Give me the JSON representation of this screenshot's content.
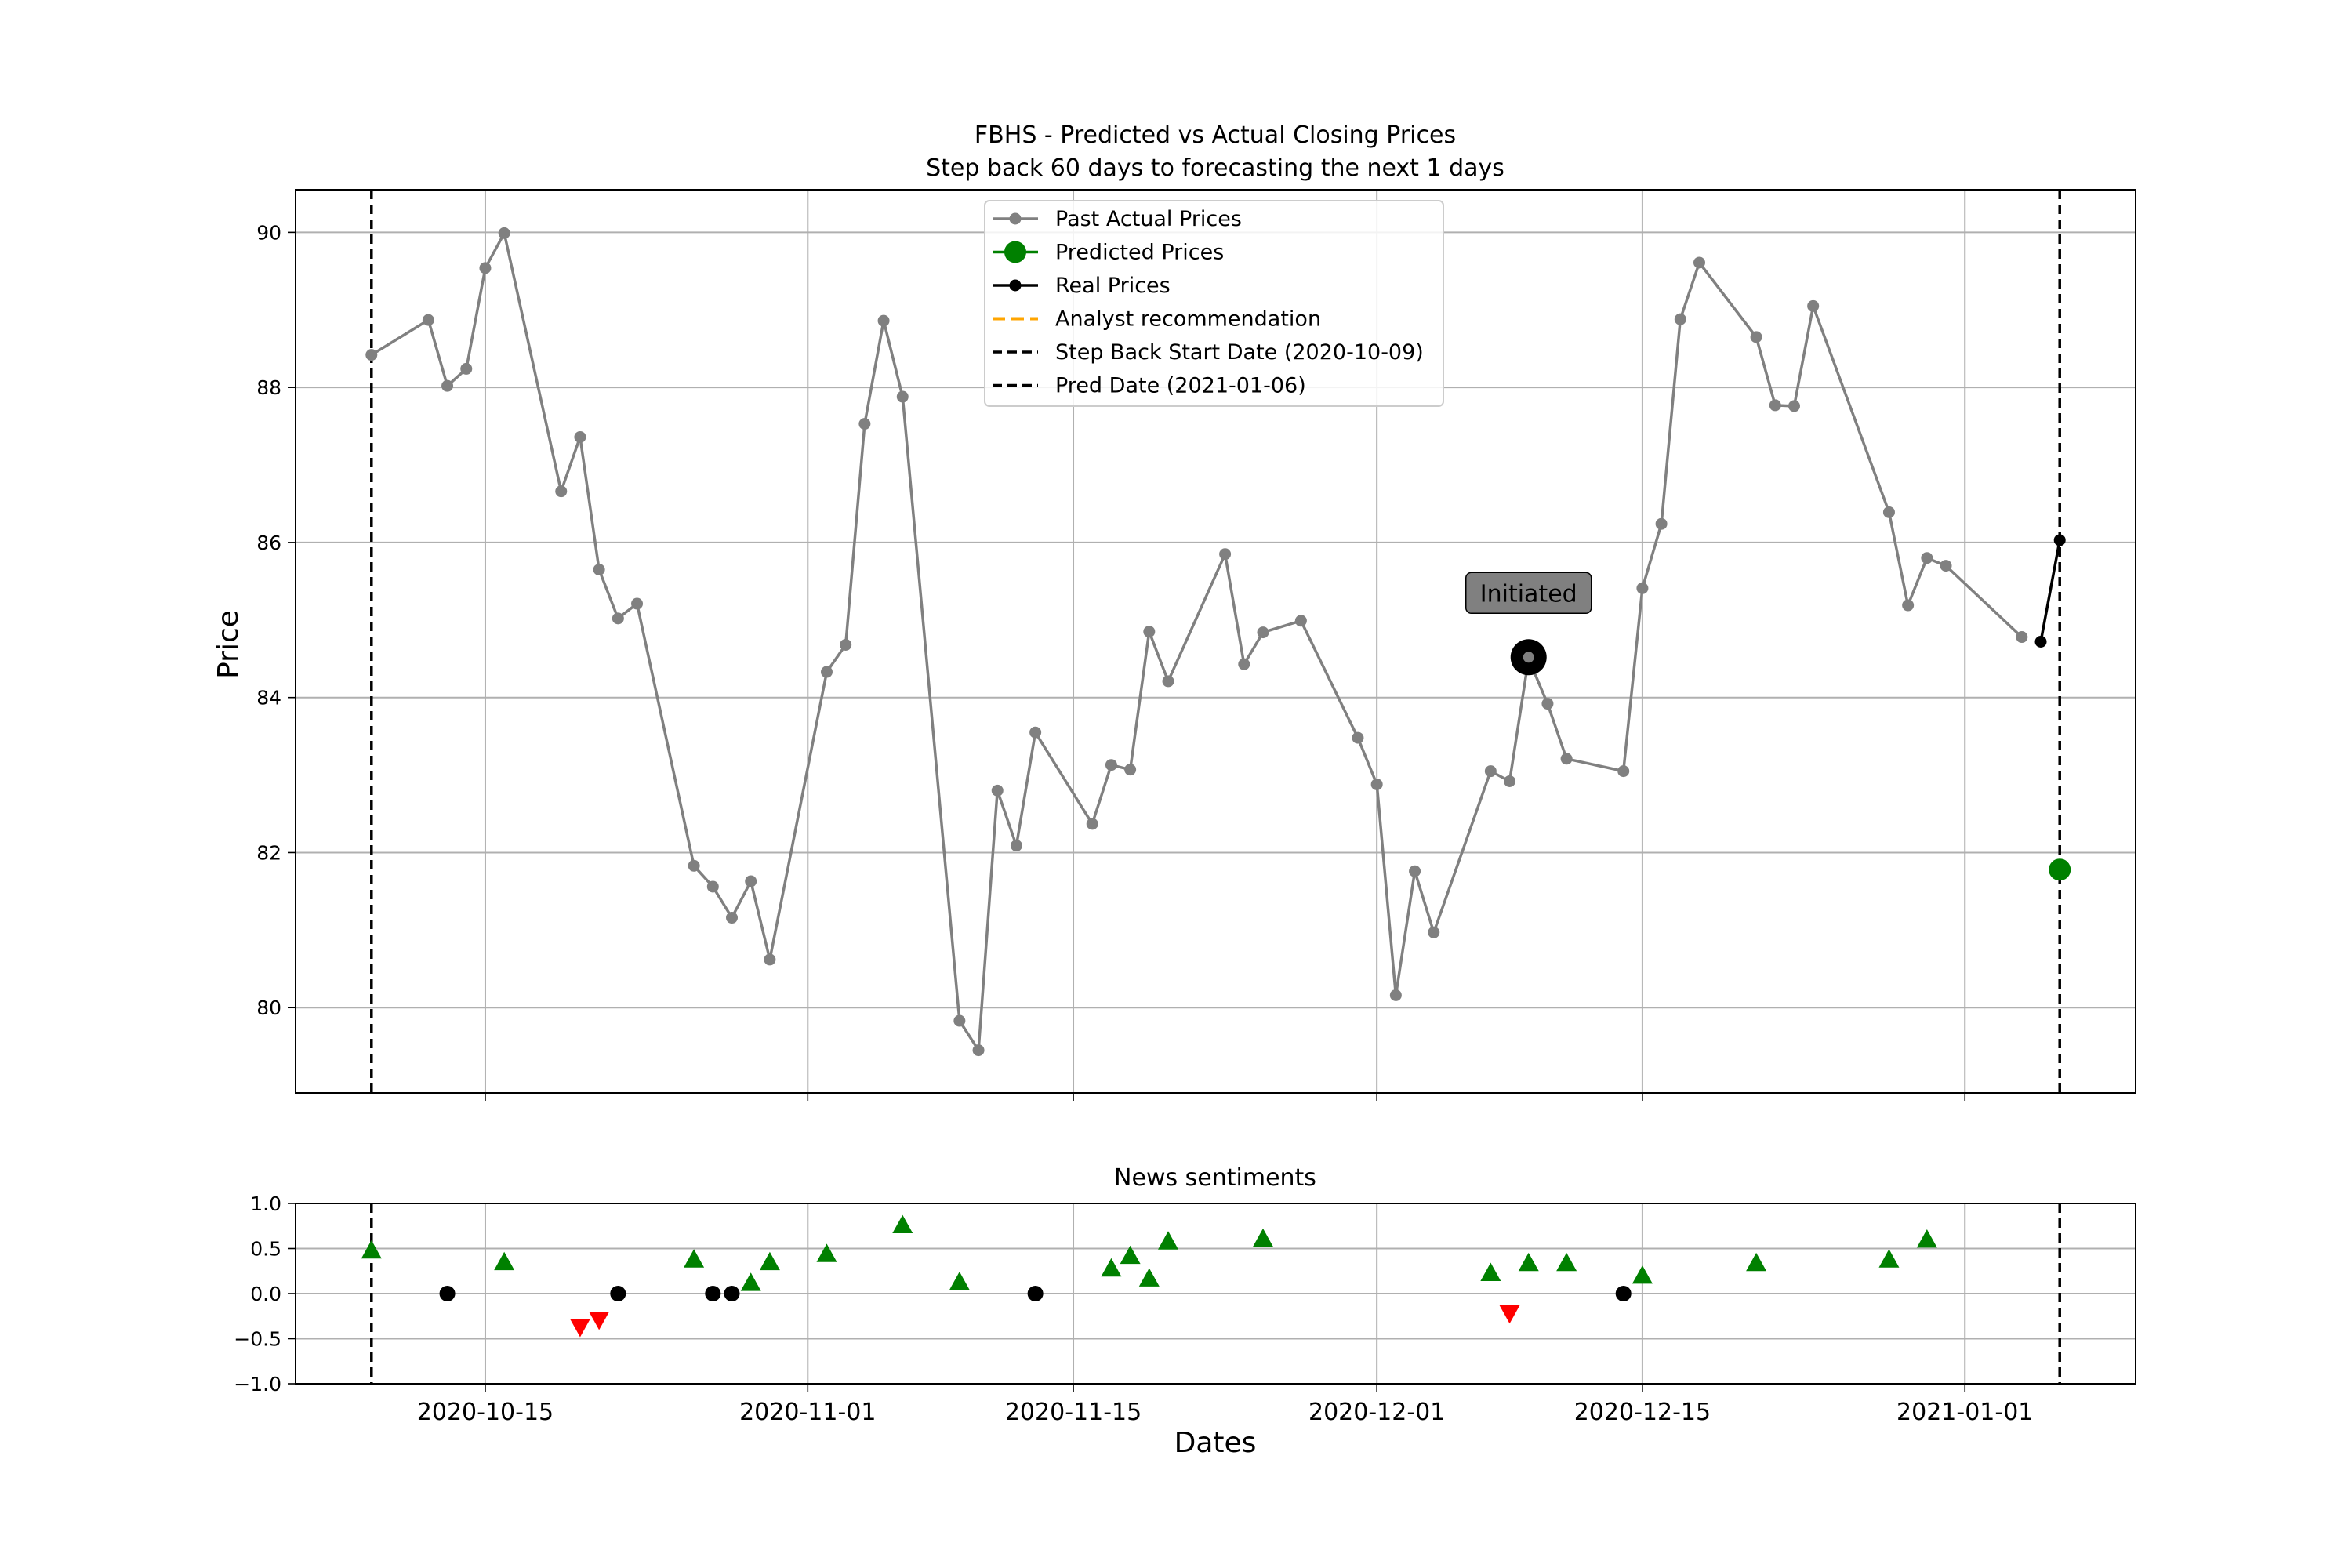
{
  "chart_data": [
    {
      "type": "line",
      "title": "FBHS - Predicted vs Actual Closing Prices",
      "subtitle": "Step back 60 days to forecasting the next 1 days",
      "xlabel": "",
      "ylabel": "Price",
      "xlim": [
        "2020-10-05",
        "2021-01-10"
      ],
      "ylim": [
        78.9,
        90.55
      ],
      "yticks": [
        80,
        82,
        84,
        86,
        88,
        90
      ],
      "grid": true,
      "legend_position": "top-center",
      "legend": [
        {
          "label": "Past Actual Prices",
          "style": "gray-line-dot"
        },
        {
          "label": "Predicted Prices",
          "style": "green-big-dot"
        },
        {
          "label": "Real Prices",
          "style": "black-line-dot"
        },
        {
          "label": "Analyst recommendation",
          "style": "orange-dash"
        },
        {
          "label": "Step Back Start Date (2020-10-09)",
          "style": "black-dash"
        },
        {
          "label": "Pred Date (2021-01-06)",
          "style": "black-dash"
        }
      ],
      "series": [
        {
          "name": "Past Actual Prices",
          "color": "#808080",
          "points": [
            [
              "2020-10-09",
              88.42
            ],
            [
              "2020-10-12",
              88.87
            ],
            [
              "2020-10-13",
              88.02
            ],
            [
              "2020-10-14",
              88.24
            ],
            [
              "2020-10-15",
              89.54
            ],
            [
              "2020-10-16",
              89.99
            ],
            [
              "2020-10-19",
              86.66
            ],
            [
              "2020-10-20",
              87.36
            ],
            [
              "2020-10-21",
              85.65
            ],
            [
              "2020-10-22",
              85.02
            ],
            [
              "2020-10-23",
              85.21
            ],
            [
              "2020-10-26",
              81.83
            ],
            [
              "2020-10-27",
              81.56
            ],
            [
              "2020-10-28",
              81.16
            ],
            [
              "2020-10-29",
              81.63
            ],
            [
              "2020-10-30",
              80.62
            ],
            [
              "2020-11-02",
              84.33
            ],
            [
              "2020-11-03",
              84.68
            ],
            [
              "2020-11-04",
              87.53
            ],
            [
              "2020-11-05",
              88.86
            ],
            [
              "2020-11-06",
              87.88
            ],
            [
              "2020-11-09",
              79.83
            ],
            [
              "2020-11-10",
              79.45
            ],
            [
              "2020-11-11",
              82.8
            ],
            [
              "2020-11-12",
              82.09
            ],
            [
              "2020-11-13",
              83.55
            ],
            [
              "2020-11-16",
              82.37
            ],
            [
              "2020-11-17",
              83.13
            ],
            [
              "2020-11-18",
              83.07
            ],
            [
              "2020-11-19",
              84.85
            ],
            [
              "2020-11-20",
              84.21
            ],
            [
              "2020-11-23",
              85.85
            ],
            [
              "2020-11-24",
              84.43
            ],
            [
              "2020-11-25",
              84.84
            ],
            [
              "2020-11-27",
              84.99
            ],
            [
              "2020-11-30",
              83.48
            ],
            [
              "2020-12-01",
              82.88
            ],
            [
              "2020-12-02",
              80.16
            ],
            [
              "2020-12-03",
              81.76
            ],
            [
              "2020-12-04",
              80.97
            ],
            [
              "2020-12-07",
              83.05
            ],
            [
              "2020-12-08",
              82.92
            ],
            [
              "2020-12-09",
              84.5
            ],
            [
              "2020-12-10",
              83.92
            ],
            [
              "2020-12-11",
              83.21
            ],
            [
              "2020-12-14",
              83.05
            ],
            [
              "2020-12-15",
              85.41
            ],
            [
              "2020-12-16",
              86.24
            ],
            [
              "2020-12-17",
              88.88
            ],
            [
              "2020-12-18",
              89.61
            ],
            [
              "2020-12-21",
              88.65
            ],
            [
              "2020-12-22",
              87.77
            ],
            [
              "2020-12-23",
              87.76
            ],
            [
              "2020-12-24",
              89.05
            ],
            [
              "2020-12-28",
              86.39
            ],
            [
              "2020-12-29",
              85.19
            ],
            [
              "2020-12-30",
              85.8
            ],
            [
              "2020-12-31",
              85.7
            ],
            [
              "2021-01-04",
              84.78
            ]
          ]
        },
        {
          "name": "Real Prices",
          "color": "#000000",
          "points": [
            [
              "2021-01-05",
              84.72
            ],
            [
              "2021-01-06",
              86.03
            ]
          ]
        },
        {
          "name": "Predicted Prices",
          "color": "#008000",
          "points": [
            [
              "2021-01-06",
              81.78
            ]
          ]
        }
      ],
      "vlines": [
        {
          "x": "2020-10-09",
          "label": "Step Back Start Date (2020-10-09)"
        },
        {
          "x": "2021-01-06",
          "label": "Pred Date (2021-01-06)"
        }
      ],
      "annotations": [
        {
          "x": "2020-12-09",
          "y": 84.52,
          "text": "Initiated"
        }
      ]
    },
    {
      "type": "scatter",
      "title": "News sentiments",
      "xlabel": "Dates",
      "ylabel": "",
      "xlim": [
        "2020-10-05",
        "2021-01-10"
      ],
      "ylim": [
        -1.0,
        1.0
      ],
      "yticks": [
        {
          "value": -1.0,
          "label": "−1.0"
        },
        {
          "value": -0.5,
          "label": "−0.5"
        },
        {
          "value": 0.0,
          "label": "0.0"
        },
        {
          "value": 0.5,
          "label": "0.5"
        },
        {
          "value": 1.0,
          "label": "1.0"
        }
      ],
      "xticks": [
        {
          "x": "2020-10-15",
          "label": "2020-10-15"
        },
        {
          "x": "2020-11-01",
          "label": "2020-11-01"
        },
        {
          "x": "2020-11-15",
          "label": "2020-11-15"
        },
        {
          "x": "2020-12-01",
          "label": "2020-12-01"
        },
        {
          "x": "2020-12-15",
          "label": "2020-12-15"
        },
        {
          "x": "2021-01-01",
          "label": "2021-01-01"
        }
      ],
      "grid": true,
      "marker_colors": {
        "positive": "#008000",
        "negative": "#ff0000",
        "neutral": "#000000"
      },
      "points": [
        {
          "x": "2020-10-09",
          "y": 0.48,
          "kind": "positive"
        },
        {
          "x": "2020-10-13",
          "y": 0.0,
          "kind": "neutral"
        },
        {
          "x": "2020-10-16",
          "y": 0.35,
          "kind": "positive"
        },
        {
          "x": "2020-10-20",
          "y": -0.37,
          "kind": "negative"
        },
        {
          "x": "2020-10-21",
          "y": -0.29,
          "kind": "negative"
        },
        {
          "x": "2020-10-22",
          "y": 0.0,
          "kind": "neutral"
        },
        {
          "x": "2020-10-26",
          "y": 0.38,
          "kind": "positive"
        },
        {
          "x": "2020-10-27",
          "y": 0.0,
          "kind": "neutral"
        },
        {
          "x": "2020-10-28",
          "y": 0.0,
          "kind": "neutral"
        },
        {
          "x": "2020-10-29",
          "y": 0.12,
          "kind": "positive"
        },
        {
          "x": "2020-10-30",
          "y": 0.35,
          "kind": "positive"
        },
        {
          "x": "2020-11-02",
          "y": 0.44,
          "kind": "positive"
        },
        {
          "x": "2020-11-06",
          "y": 0.76,
          "kind": "positive"
        },
        {
          "x": "2020-11-09",
          "y": 0.13,
          "kind": "positive"
        },
        {
          "x": "2020-11-13",
          "y": 0.0,
          "kind": "neutral"
        },
        {
          "x": "2020-11-17",
          "y": 0.28,
          "kind": "positive"
        },
        {
          "x": "2020-11-18",
          "y": 0.42,
          "kind": "positive"
        },
        {
          "x": "2020-11-19",
          "y": 0.17,
          "kind": "positive"
        },
        {
          "x": "2020-11-20",
          "y": 0.58,
          "kind": "positive"
        },
        {
          "x": "2020-11-25",
          "y": 0.61,
          "kind": "positive"
        },
        {
          "x": "2020-12-07",
          "y": 0.23,
          "kind": "positive"
        },
        {
          "x": "2020-12-08",
          "y": -0.22,
          "kind": "negative"
        },
        {
          "x": "2020-12-09",
          "y": 0.34,
          "kind": "positive"
        },
        {
          "x": "2020-12-11",
          "y": 0.34,
          "kind": "positive"
        },
        {
          "x": "2020-12-14",
          "y": 0.0,
          "kind": "neutral"
        },
        {
          "x": "2020-12-15",
          "y": 0.2,
          "kind": "positive"
        },
        {
          "x": "2020-12-21",
          "y": 0.34,
          "kind": "positive"
        },
        {
          "x": "2020-12-28",
          "y": 0.38,
          "kind": "positive"
        },
        {
          "x": "2020-12-30",
          "y": 0.6,
          "kind": "positive"
        }
      ],
      "vlines": [
        {
          "x": "2020-10-09"
        },
        {
          "x": "2021-01-06"
        }
      ]
    }
  ]
}
